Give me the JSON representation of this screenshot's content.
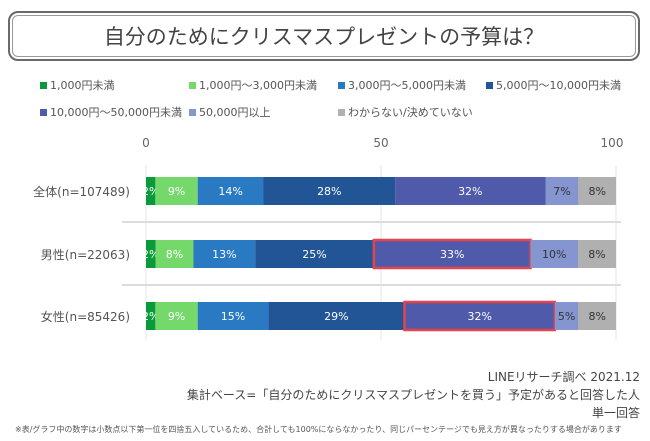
{
  "chart_data": {
    "type": "bar",
    "orientation": "horizontal-stacked-100",
    "title": "自分のためにクリスマスプレゼントの予算は？",
    "categories": [
      "全体(n=107489)",
      "男性(n=22063)",
      "女性(n=85426)"
    ],
    "xlim": [
      0,
      100
    ],
    "xticks": [
      "0",
      "50",
      "100"
    ],
    "legend_placement": "top",
    "series": [
      {
        "name": "1,000円未満",
        "color": "#0a9a3c",
        "values": [
          2,
          2,
          2
        ]
      },
      {
        "name": "1,000円～3,000円未満",
        "color": "#74d96a",
        "values": [
          9,
          8,
          9
        ]
      },
      {
        "name": "3,000円～5,000円未満",
        "color": "#2979c3",
        "values": [
          14,
          13,
          15
        ]
      },
      {
        "name": "5,000円～10,000円未満",
        "color": "#225596",
        "values": [
          28,
          25,
          29
        ]
      },
      {
        "name": "10,000円～50,000円未満",
        "color": "#4f5aab",
        "values": [
          32,
          33,
          32
        ]
      },
      {
        "name": "50,000円以上",
        "color": "#8595d0",
        "values": [
          7,
          10,
          5
        ]
      },
      {
        "name": "わからない/決めていない",
        "color": "#b0b0b0",
        "values": [
          8,
          8,
          8
        ]
      }
    ],
    "highlights": [
      {
        "category": "男性(n=22063)",
        "series": "10,000円～50,000円未満"
      },
      {
        "category": "女性(n=85426)",
        "series": "10,000円～50,000円未満"
      }
    ],
    "highlight_color": "#e8434a"
  },
  "notes": {
    "source": "LINEリサーチ調べ 2021.12",
    "base": "集計ベース=「自分のためにクリスマスプレゼントを買う」予定があると回答した人",
    "answer_type": "単一回答",
    "footnote": "※表/グラフ中の数字は小数点以下第一位を四捨五入しているため、合計しても100%にならなかったり、同じパーセンテージでも見え方が異なったりする場合があります"
  }
}
